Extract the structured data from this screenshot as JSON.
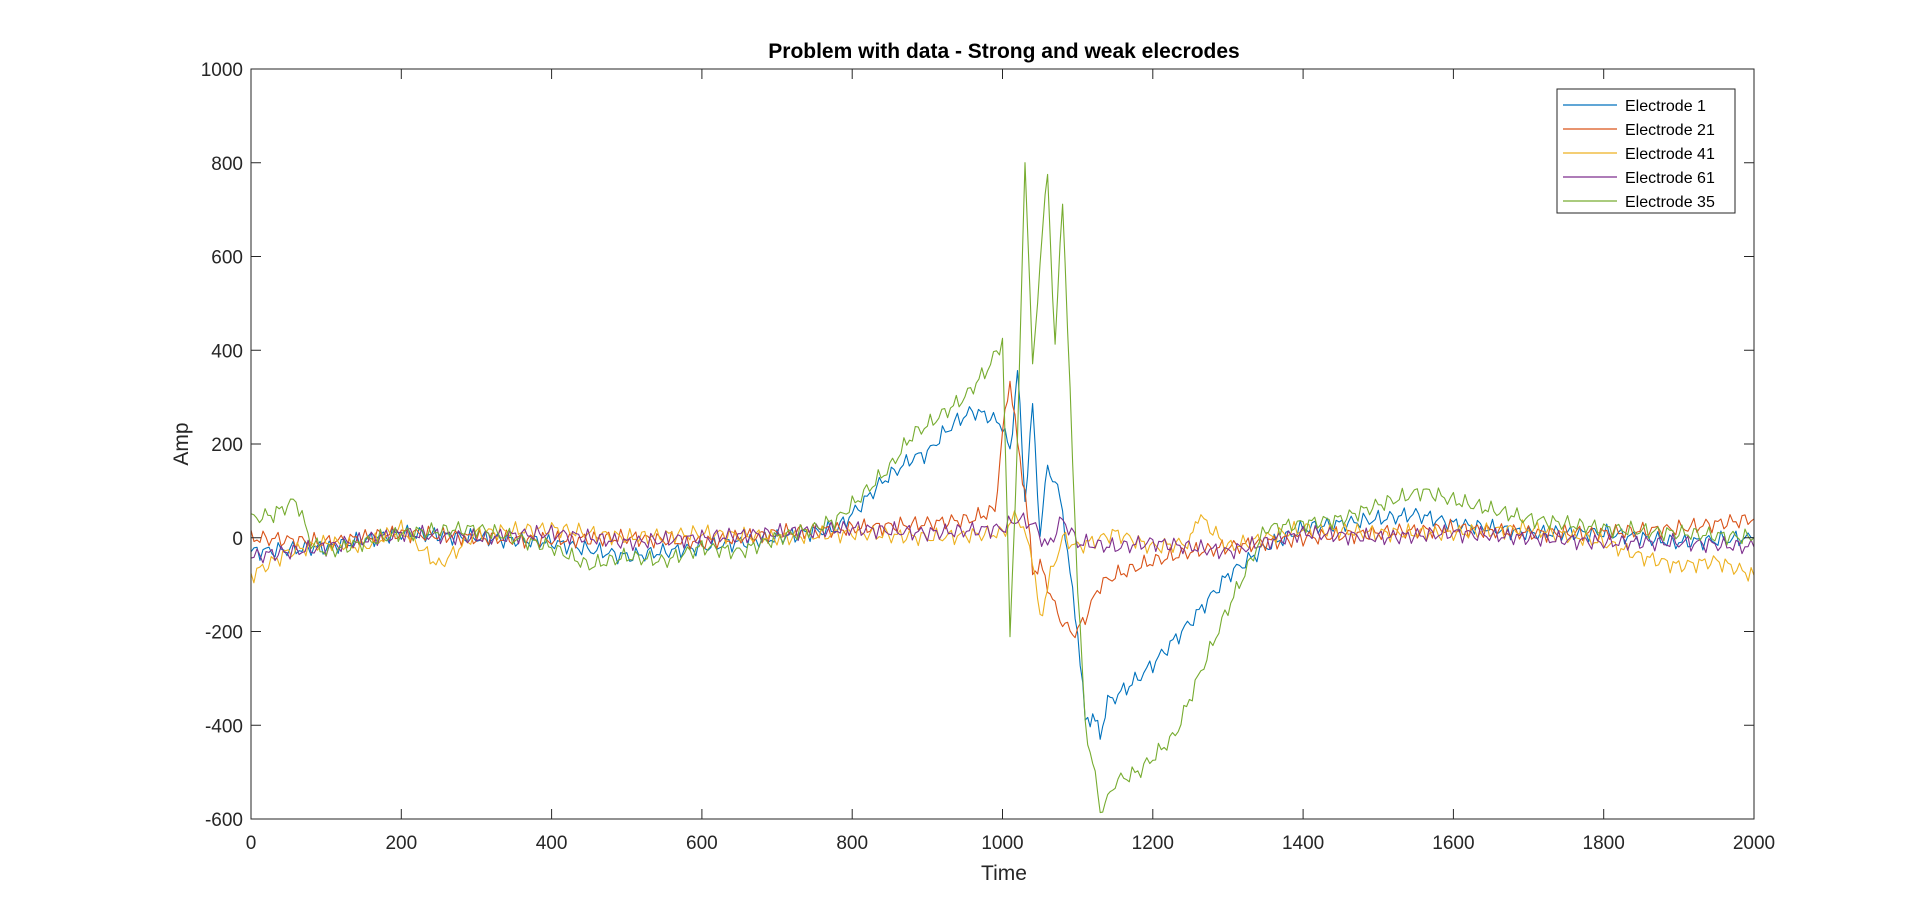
{
  "chart_data": {
    "type": "line",
    "title": "Problem with data - Strong and weak elecrodes",
    "xlabel": "Time",
    "ylabel": "Amp",
    "xlim": [
      0,
      2000
    ],
    "ylim": [
      -600,
      1000
    ],
    "xticks": [
      0,
      200,
      400,
      600,
      800,
      1000,
      1200,
      1400,
      1600,
      1800,
      2000
    ],
    "yticks": [
      -600,
      -400,
      -200,
      0,
      200,
      400,
      600,
      800,
      1000
    ],
    "grid": false,
    "legend_position": "top-right",
    "series": [
      {
        "name": "Electrode 1",
        "color": "#0072BD",
        "x": [
          0,
          100,
          200,
          300,
          400,
          500,
          600,
          700,
          780,
          800,
          840,
          880,
          900,
          920,
          940,
          960,
          980,
          1000,
          1010,
          1020,
          1030,
          1040,
          1050,
          1060,
          1070,
          1080,
          1090,
          1100,
          1110,
          1120,
          1130,
          1140,
          1150,
          1180,
          1200,
          1250,
          1300,
          1350,
          1400,
          1500,
          1550,
          1600,
          1700,
          1800,
          1900,
          2000
        ],
        "y": [
          -30,
          -20,
          10,
          0,
          -10,
          -40,
          -20,
          0,
          20,
          50,
          120,
          170,
          180,
          220,
          250,
          270,
          260,
          240,
          180,
          360,
          80,
          280,
          10,
          150,
          120,
          60,
          -80,
          -200,
          -390,
          -380,
          -420,
          -350,
          -340,
          -300,
          -270,
          -180,
          -80,
          -20,
          20,
          40,
          50,
          30,
          10,
          10,
          -10,
          0
        ]
      },
      {
        "name": "Electrode 21",
        "color": "#D95319",
        "x": [
          0,
          100,
          200,
          300,
          400,
          500,
          600,
          700,
          800,
          900,
          960,
          990,
          1000,
          1010,
          1020,
          1030,
          1040,
          1050,
          1060,
          1070,
          1080,
          1090,
          1100,
          1110,
          1130,
          1150,
          1200,
          1250,
          1300,
          1350,
          1400,
          1500,
          1600,
          1700,
          1800,
          1900,
          2000
        ],
        "y": [
          0,
          -10,
          10,
          0,
          -5,
          0,
          -10,
          10,
          20,
          30,
          40,
          60,
          220,
          340,
          200,
          100,
          -70,
          -60,
          -100,
          -150,
          -180,
          -200,
          -200,
          -170,
          -100,
          -80,
          -50,
          -30,
          -20,
          -10,
          0,
          10,
          20,
          10,
          10,
          20,
          40
        ]
      },
      {
        "name": "Electrode 41",
        "color": "#EDB120",
        "x": [
          0,
          50,
          100,
          150,
          200,
          250,
          300,
          400,
          500,
          600,
          700,
          800,
          900,
          1000,
          1020,
          1040,
          1050,
          1060,
          1080,
          1100,
          1150,
          1200,
          1250,
          1260,
          1300,
          1400,
          1500,
          1600,
          1700,
          1800,
          1850,
          1900,
          1950,
          2000
        ],
        "y": [
          -80,
          -30,
          -10,
          -20,
          20,
          -60,
          10,
          20,
          0,
          10,
          0,
          10,
          0,
          10,
          50,
          -40,
          -180,
          -100,
          0,
          -20,
          10,
          -20,
          -10,
          50,
          -20,
          20,
          10,
          10,
          20,
          -10,
          -40,
          -60,
          -50,
          -80
        ]
      },
      {
        "name": "Electrode 61",
        "color": "#7E2F8E",
        "x": [
          0,
          100,
          200,
          300,
          400,
          500,
          600,
          700,
          800,
          900,
          1000,
          1020,
          1040,
          1060,
          1080,
          1100,
          1150,
          1200,
          1300,
          1400,
          1500,
          1600,
          1700,
          1800,
          1900,
          2000
        ],
        "y": [
          -40,
          -20,
          10,
          0,
          10,
          -10,
          0,
          10,
          20,
          10,
          20,
          40,
          30,
          -20,
          40,
          -10,
          -20,
          -10,
          -30,
          10,
          0,
          10,
          0,
          -10,
          -10,
          -20
        ]
      },
      {
        "name": "Electrode 35",
        "color": "#77AC30",
        "x": [
          0,
          30,
          60,
          80,
          100,
          200,
          300,
          400,
          450,
          500,
          550,
          600,
          650,
          700,
          750,
          780,
          800,
          850,
          880,
          900,
          950,
          980,
          1000,
          1010,
          1020,
          1030,
          1040,
          1050,
          1060,
          1070,
          1080,
          1090,
          1100,
          1110,
          1120,
          1130,
          1140,
          1150,
          1180,
          1200,
          1230,
          1260,
          1300,
          1330,
          1350,
          1400,
          1450,
          1500,
          1560,
          1600,
          1650,
          1700,
          1800,
          1900,
          2000
        ],
        "y": [
          40,
          50,
          80,
          -10,
          -30,
          10,
          20,
          -20,
          -60,
          -40,
          -50,
          -20,
          -30,
          0,
          20,
          40,
          70,
          150,
          220,
          240,
          300,
          360,
          420,
          -200,
          200,
          815,
          360,
          590,
          780,
          400,
          730,
          300,
          -100,
          -400,
          -480,
          -580,
          -560,
          -520,
          -500,
          -470,
          -420,
          -300,
          -150,
          -50,
          20,
          30,
          40,
          70,
          100,
          80,
          60,
          40,
          20,
          10,
          0
        ]
      }
    ]
  }
}
